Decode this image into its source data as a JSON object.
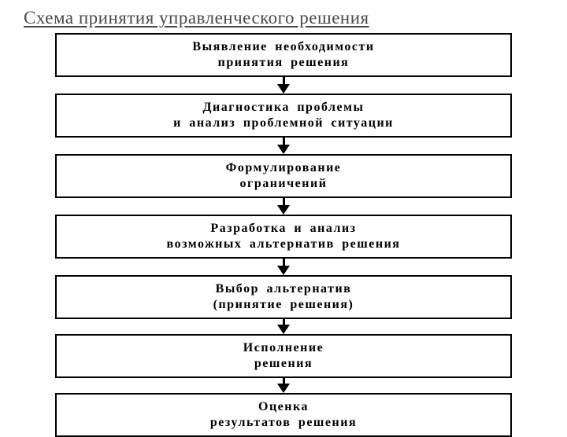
{
  "title": "Схема принятия управленческого решения",
  "flowchart": {
    "type": "flowchart",
    "direction": "vertical",
    "box_border_color": "#000000",
    "box_border_width": 2,
    "box_background": "#ffffff",
    "text_color": "#000000",
    "title_color": "#4a4a4a",
    "title_fontsize": 23,
    "box_fontsize": 16,
    "box_fontweight": "bold",
    "arrow_color": "#000000",
    "arrow_shaft_width": 3,
    "arrow_head_size": 12,
    "nodes": [
      {
        "id": 1,
        "line1": "Выявление  необходимости",
        "line2": "принятия  решения",
        "arrow_shaft_height": 10
      },
      {
        "id": 2,
        "line1": "Диагностика  проблемы",
        "line2": "и  анализ  проблемной  ситуации",
        "arrow_shaft_height": 10
      },
      {
        "id": 3,
        "line1": "Формулирование",
        "line2": "ограничений",
        "arrow_shaft_height": 10
      },
      {
        "id": 4,
        "line1": "Разработка  и  анализ",
        "line2": "возможных  альтернатив  решения",
        "arrow_shaft_height": 10
      },
      {
        "id": 5,
        "line1": "Выбор  альтернатив",
        "line2": "(принятие  решения)",
        "arrow_shaft_height": 8
      },
      {
        "id": 6,
        "line1": "Исполнение",
        "line2": "решения",
        "arrow_shaft_height": 8
      },
      {
        "id": 7,
        "line1": "Оценка",
        "line2": "результатов  решения",
        "arrow_shaft_height": 0
      }
    ],
    "edges": [
      {
        "from": 1,
        "to": 2
      },
      {
        "from": 2,
        "to": 3
      },
      {
        "from": 3,
        "to": 4
      },
      {
        "from": 4,
        "to": 5
      },
      {
        "from": 5,
        "to": 6
      },
      {
        "from": 6,
        "to": 7
      }
    ]
  }
}
